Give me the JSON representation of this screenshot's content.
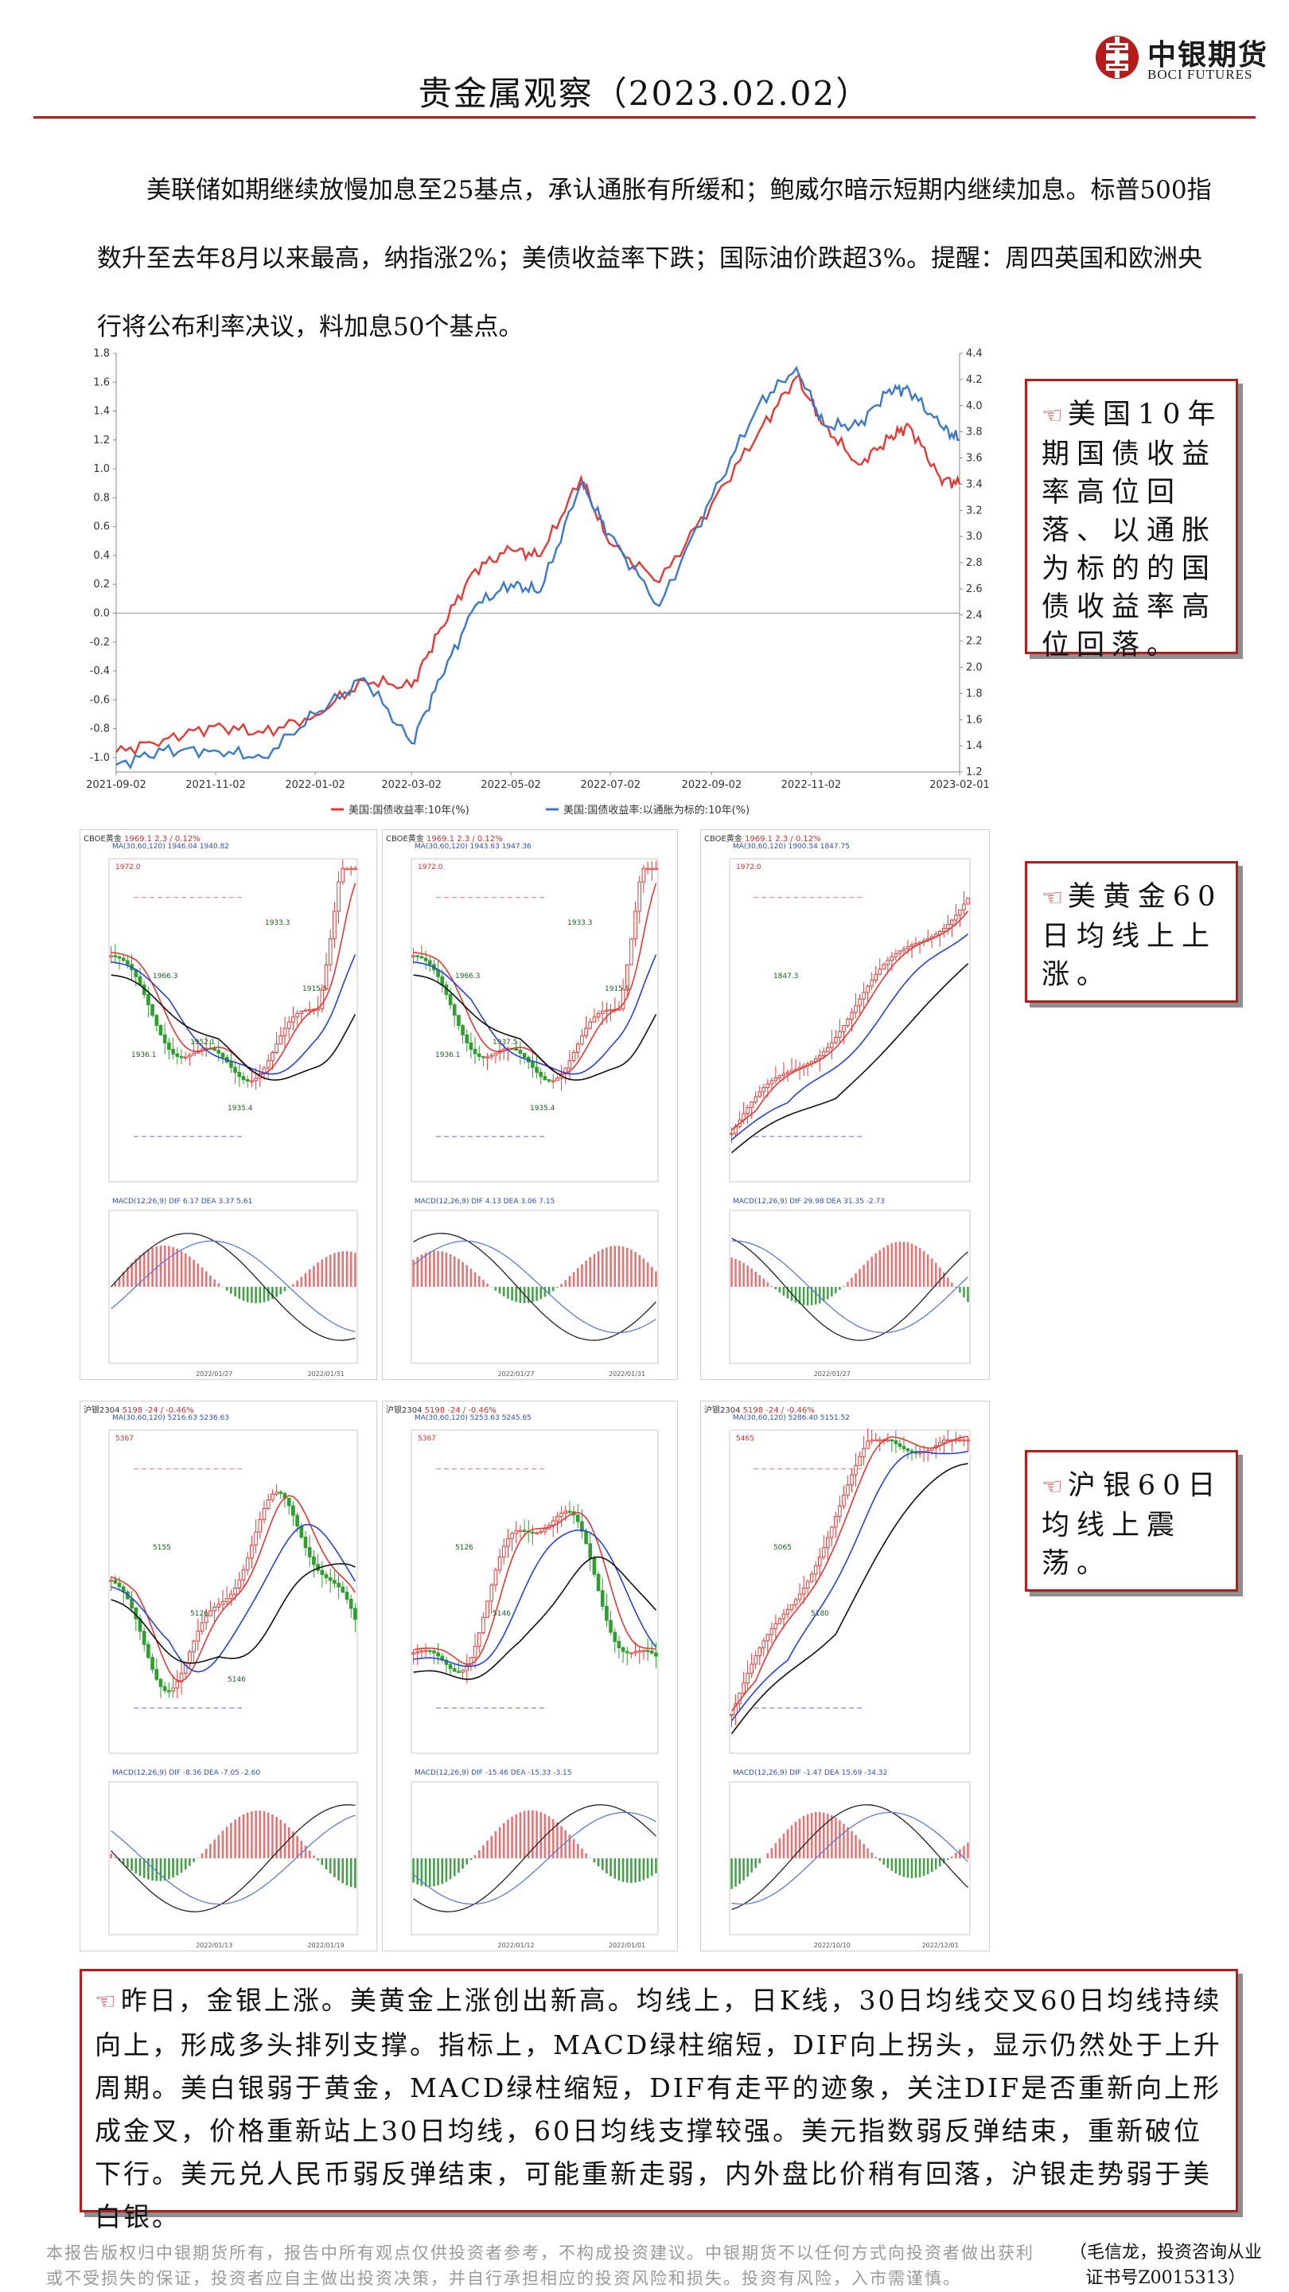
{
  "header": {
    "title": "贵金属观察（2023.02.02）",
    "logo_cn": "中银期货",
    "logo_en": "BOCI FUTURES"
  },
  "colors": {
    "accent": "#b71c1c",
    "up": "#e53935",
    "down": "#2e7d32",
    "ma_blue": "#2444d6",
    "ma_red": "#e53935",
    "ma_black": "#111111"
  },
  "summary": "美联储如期继续放慢加息至25基点，承认通胀有所缓和；鲍威尔暗示短期内继续加息。标普500指数升至去年8月以来最高，纳指涨2%；美债收益率下跌；国际油价跌超3%。提醒：周四英国和欧洲央行将公布利率决议，料加息50个基点。",
  "yield_chart": {
    "left_ticks": [
      "1.8",
      "1.6",
      "1.4",
      "1.2",
      "1.0",
      "0.8",
      "0.6",
      "0.4",
      "0.2",
      "0.0",
      "-0.2",
      "-0.4",
      "-0.6",
      "-0.8",
      "-1.0"
    ],
    "right_ticks": [
      "4.4",
      "4.2",
      "4.0",
      "3.8",
      "3.6",
      "3.4",
      "3.2",
      "3.0",
      "2.8",
      "2.6",
      "2.4",
      "2.2",
      "2.0",
      "1.8",
      "1.6",
      "1.4",
      "1.2"
    ],
    "x_ticks": [
      "2021-09-02",
      "2021-11-02",
      "2022-01-02",
      "2022-03-02",
      "2022-05-02",
      "2022-07-02",
      "2022-09-02",
      "2022-11-02",
      "2023-02-01"
    ],
    "legend": [
      "美国:国债收益率:10年(%)",
      "美国:国债收益率:以通胀为标的:10年(%)"
    ]
  },
  "chart_data": {
    "type": "line",
    "x_range": [
      "2021-09-02",
      "2023-02-01"
    ],
    "ylim_left": [
      -1.1,
      1.8
    ],
    "ylim_right": [
      1.2,
      4.4
    ],
    "series": [
      {
        "name": "美国:国债收益率:10年(%)",
        "axis": "right",
        "color": "#e53935",
        "x": [
          "2021-09-02",
          "2021-10-01",
          "2021-11-01",
          "2021-12-01",
          "2022-01-02",
          "2022-02-01",
          "2022-03-02",
          "2022-03-20",
          "2022-04-10",
          "2022-05-02",
          "2022-05-20",
          "2022-06-14",
          "2022-07-01",
          "2022-08-01",
          "2022-09-02",
          "2022-10-01",
          "2022-10-24",
          "2022-11-10",
          "2022-12-01",
          "2022-12-20",
          "2023-01-01",
          "2023-01-20",
          "2023-02-01"
        ],
        "y": [
          1.35,
          1.45,
          1.55,
          1.5,
          1.63,
          1.9,
          1.85,
          2.3,
          2.75,
          2.9,
          2.85,
          3.45,
          2.95,
          2.65,
          3.25,
          3.8,
          4.22,
          3.85,
          3.55,
          3.75,
          3.85,
          3.45,
          3.4
        ]
      },
      {
        "name": "美国:国债收益率:以通胀为标的:10年(%)",
        "axis": "left",
        "color": "#3a78c8",
        "x": [
          "2021-09-02",
          "2021-10-01",
          "2021-11-01",
          "2021-12-01",
          "2022-01-02",
          "2022-02-01",
          "2022-03-02",
          "2022-03-20",
          "2022-04-10",
          "2022-05-02",
          "2022-05-20",
          "2022-06-14",
          "2022-07-01",
          "2022-08-01",
          "2022-09-02",
          "2022-10-01",
          "2022-10-24",
          "2022-11-10",
          "2022-12-01",
          "2022-12-20",
          "2023-01-01",
          "2023-01-20",
          "2023-02-01"
        ],
        "y": [
          -1.05,
          -0.95,
          -0.95,
          -1.0,
          -0.7,
          -0.45,
          -0.9,
          -0.45,
          0.05,
          0.2,
          0.15,
          0.9,
          0.55,
          0.05,
          0.8,
          1.45,
          1.7,
          1.3,
          1.3,
          1.55,
          1.55,
          1.3,
          1.2
        ]
      }
    ]
  },
  "panels": [
    {
      "title": "CBOE黄金",
      "price": "1969.1",
      "chg": "2.3 / 0.12%",
      "ma": "MA(30,60,120) 1946.04 1940.82",
      "macd": "MACD(12,26,9) DIF 6.17 DEA 3.37 5.61",
      "dates": [
        "2022/01/27",
        "2022/01/31"
      ],
      "labels": [
        "1972.0",
        "1966.3",
        "1952.1",
        "1935.4",
        "1933.3",
        "1915.5",
        "1936.1"
      ]
    },
    {
      "title": "CBOE黄金",
      "price": "1969.1",
      "chg": "2.3 / 0.12%",
      "ma": "MA(30,60,120) 1943.63 1947.36",
      "macd": "MACD(12,26,9) DIF 4.13 DEA 3.06 7.15",
      "dates": [
        "2022/01/27",
        "2022/01/31"
      ],
      "labels": [
        "1972.0",
        "1966.3",
        "1937.5",
        "1935.4",
        "1933.3",
        "1915.5",
        "1936.1"
      ]
    },
    {
      "title": "CBOE黄金",
      "price": "1969.1",
      "chg": "2.3 / 0.12%",
      "ma": "MA(30,60,120) 1900.54 1847.75",
      "macd": "MACD(12,26,9) DIF 29.98 DEA 31.35 -2.73",
      "dates": [
        "2022/01/27"
      ],
      "labels": [
        "1972.0",
        "1847.3"
      ]
    },
    {
      "title": "沪银2304",
      "price": "5198",
      "chg": "-24 / -0.46%",
      "ma": "MA(30,60,120) 5216.63 5236.63",
      "macd": "MACD(12,26,9) DIF -8.36 DEA -7.05 -2.60",
      "dates": [
        "2022/01/13",
        "2022/01/19"
      ],
      "labels": [
        "5367",
        "5155",
        "5126",
        "5146"
      ]
    },
    {
      "title": "沪银2304",
      "price": "5198",
      "chg": "-24 / -0.46%",
      "ma": "MA(30,60,120) 5253.63 5245.65",
      "macd": "MACD(12,26,9) DIF -15.46 DEA -15.33 -3.15",
      "dates": [
        "2022/01/12",
        "2022/01/01"
      ],
      "labels": [
        "5367",
        "5126",
        "5146"
      ]
    },
    {
      "title": "沪银2304",
      "price": "5198",
      "chg": "-24 / -0.46%",
      "ma": "MA(30,60,120) 5286.40 5151.52",
      "macd": "MACD(12,26,9) DIF -1.47 DEA 15.69 -34.32",
      "dates": [
        "2022/10/10",
        "2022/12/01"
      ],
      "labels": [
        "5465",
        "5065",
        "5180"
      ]
    }
  ],
  "notes": {
    "box1": "美国10年期国债收益率高位回落、以通胀为标的的国债收益率高位回落。",
    "box2": "美黄金60日均线上上涨。",
    "box3": "沪银60日均线上震荡。",
    "box4": "昨日，金银上涨。美黄金上涨创出新高。均线上，日K线，30日均线交叉60日均线持续向上，形成多头排列支撑。指标上，MACD绿柱缩短，DIF向上拐头，显示仍然处于上升周期。美白银弱于黄金，MACD绿柱缩短，DIF有走平的迹象，关注DIF是否重新向上形成金叉，价格重新站上30日均线，60日均线支撑较强。美元指数弱反弹结束，重新破位下行。美元兑人民币弱反弹结束，可能重新走弱，内外盘比价稍有回落，沪银走势弱于美白银。"
  },
  "hand_icon": "pointing-hand-icon",
  "disclaimer": "本报告版权归中银期货所有，报告中所有观点仅供投资者参考，不构成投资建议。中银期货不以任何方式向投资者做出获利或不受损失的保证，投资者应自主做出投资决策，并自行承担相应的投资风险和损失。投资有风险，入市需谨慎。",
  "analyst": "（毛信龙，投资咨询从业证书号Z0015313）"
}
